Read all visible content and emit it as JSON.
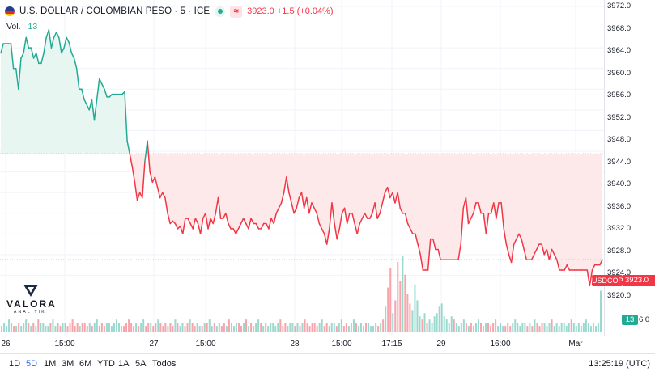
{
  "legend": {
    "title": "U.S. DOLLAR / COLOMBIAN PESO · 5 · ICE",
    "market_icon": "green-dot-icon",
    "delay_icon": "approx-icon",
    "delay_glyph": "≈",
    "price_change": "3923.0 +1.5 (+0.04%)"
  },
  "volume_legend": {
    "label": "Vol.",
    "value": "13"
  },
  "logo": {
    "name": "VALORA",
    "tagline": "ANALITIK"
  },
  "price_axis": {
    "ticks": [
      "3972.0",
      "3968.0",
      "3964.0",
      "3960.0",
      "3956.0",
      "3952.0",
      "3948.0",
      "3944.0",
      "3940.0",
      "3936.0",
      "3932.0",
      "3928.0",
      "3924.0",
      "3920.0",
      "3916.0"
    ],
    "symbol_tag": "USDCOP",
    "last_price_tag": "3923.0",
    "volume_tag": "13",
    "volume_tick": "6.0"
  },
  "time_axis": {
    "labels": [
      "26",
      "15:00",
      "27",
      "15:00",
      "28",
      "15:00",
      "17:15",
      "29",
      "16:00",
      "Mar"
    ]
  },
  "bottom_bar": {
    "ranges": [
      "1D",
      "5D",
      "1M",
      "3M",
      "6M",
      "YTD",
      "1A",
      "5A",
      "Todos"
    ],
    "active_range": "5D",
    "clock": "13:25:19 (UTC)"
  },
  "colors": {
    "up": "#22ab94",
    "down": "#f23645",
    "up_fill": "#e8f6f1",
    "down_fill": "#fde8ea",
    "active": "#2962ff"
  },
  "chart_data": {
    "type": "area",
    "ylim": [
      3916,
      3972
    ],
    "baseline": 3943.5,
    "last_price": 3923.0,
    "grid": true,
    "series": [
      {
        "values": [
          3963,
          3964.8,
          3964.8,
          3964.8,
          3964.8,
          3960,
          3960,
          3956,
          3962,
          3963,
          3966,
          3964,
          3964,
          3962,
          3963,
          3961,
          3961,
          3963,
          3966,
          3967.5,
          3964,
          3966,
          3967,
          3966,
          3963,
          3964,
          3966,
          3965,
          3963,
          3962,
          3960,
          3956,
          3956,
          3954,
          3953,
          3952,
          3954,
          3950,
          3954,
          3958,
          3957,
          3956,
          3954.5,
          3954.5,
          3955,
          3955,
          3955,
          3955,
          3955,
          3955.5,
          3946,
          3943.5,
          3941,
          3938,
          3934.5,
          3936,
          3935,
          3942,
          3946,
          3940,
          3938,
          3939,
          3937,
          3935,
          3936,
          3935,
          3932,
          3930,
          3930.5,
          3930,
          3929,
          3929.5,
          3928,
          3931,
          3931,
          3930,
          3929,
          3931,
          3930,
          3928,
          3931,
          3932,
          3929,
          3931,
          3930,
          3932,
          3935,
          3931,
          3931,
          3932,
          3930,
          3929,
          3929,
          3928,
          3929,
          3930,
          3931,
          3930,
          3929,
          3931,
          3930,
          3930,
          3929,
          3929,
          3930,
          3930,
          3929,
          3931,
          3930,
          3932,
          3933,
          3934,
          3936,
          3939,
          3936,
          3934,
          3932,
          3933,
          3935,
          3936,
          3933,
          3935,
          3932,
          3934,
          3933,
          3932,
          3930,
          3929,
          3928,
          3926,
          3929,
          3934,
          3930,
          3927,
          3929,
          3932,
          3933,
          3930,
          3932,
          3932,
          3930,
          3928,
          3930,
          3931,
          3932,
          3931,
          3931,
          3932,
          3934,
          3931,
          3932,
          3934,
          3936,
          3937,
          3935,
          3936,
          3934,
          3936,
          3933,
          3932,
          3932,
          3930,
          3929,
          3928,
          3928,
          3926,
          3924,
          3921,
          3921,
          3921,
          3927,
          3927,
          3925,
          3925,
          3923,
          3923,
          3923,
          3923,
          3923,
          3923,
          3923,
          3923,
          3926,
          3933,
          3935,
          3930,
          3931,
          3932,
          3934,
          3934,
          3932,
          3932,
          3928,
          3932,
          3932,
          3934,
          3931,
          3934,
          3934,
          3929,
          3926,
          3924,
          3922.5,
          3926,
          3927,
          3928,
          3927,
          3925,
          3923,
          3923,
          3923,
          3924,
          3925,
          3926,
          3926,
          3924,
          3925,
          3923,
          3925,
          3924,
          3923,
          3921,
          3921,
          3921,
          3922,
          3921,
          3921,
          3921,
          3921,
          3921,
          3921,
          3921,
          3921,
          3918,
          3921,
          3922,
          3922,
          3922,
          3923
        ]
      },
      {
        "values": [
          2,
          3,
          2,
          4,
          3,
          2,
          2,
          3,
          2,
          3,
          4,
          3,
          2,
          3,
          2,
          4,
          3,
          3,
          2,
          2,
          3,
          4,
          2,
          3,
          2,
          3,
          3,
          2,
          3,
          4,
          2,
          3,
          2,
          3,
          3,
          2,
          3,
          2,
          3,
          4,
          2,
          3,
          2,
          3,
          3,
          2,
          3,
          4,
          3,
          2,
          2,
          3,
          4,
          3,
          2,
          3,
          2,
          3,
          4,
          2,
          3,
          3,
          2,
          3,
          4,
          3,
          2,
          3,
          2,
          3,
          2,
          4,
          3,
          2,
          3,
          2,
          3,
          4,
          3,
          2,
          3,
          2,
          2,
          3,
          3,
          4,
          2,
          3,
          2,
          3,
          2,
          3,
          2,
          4,
          3,
          2,
          3,
          3,
          2,
          3,
          4,
          2,
          3,
          2,
          3,
          4,
          3,
          2,
          3,
          2,
          3,
          3,
          2,
          3,
          4,
          2,
          3,
          2,
          3,
          3,
          2,
          3,
          2,
          3,
          4,
          3,
          2,
          3,
          3,
          2,
          3,
          4,
          2,
          3,
          2,
          3,
          3,
          2,
          3,
          4,
          2,
          3,
          2,
          3,
          4,
          3,
          2,
          3,
          2,
          3,
          3,
          2,
          2,
          3,
          2,
          3,
          4,
          8,
          14,
          20,
          6,
          10,
          22,
          16,
          24,
          18,
          12,
          9,
          7,
          15,
          10,
          5,
          4,
          6,
          3,
          4,
          3,
          5,
          6,
          8,
          9,
          5,
          4,
          3,
          5,
          4,
          3,
          2,
          3,
          4,
          3,
          2,
          3,
          2,
          3,
          4,
          3,
          2,
          3,
          3,
          2,
          3,
          4,
          2,
          3,
          2,
          2,
          3,
          2,
          3,
          4,
          3,
          2,
          3,
          3,
          2,
          3,
          2,
          4,
          3,
          2,
          3,
          3,
          2,
          3,
          4,
          2,
          3,
          2,
          3,
          3,
          2,
          3,
          4,
          3,
          2,
          3,
          2,
          3,
          4,
          3,
          2,
          3,
          2,
          3,
          13
        ],
        "name": "Vol."
      }
    ]
  }
}
